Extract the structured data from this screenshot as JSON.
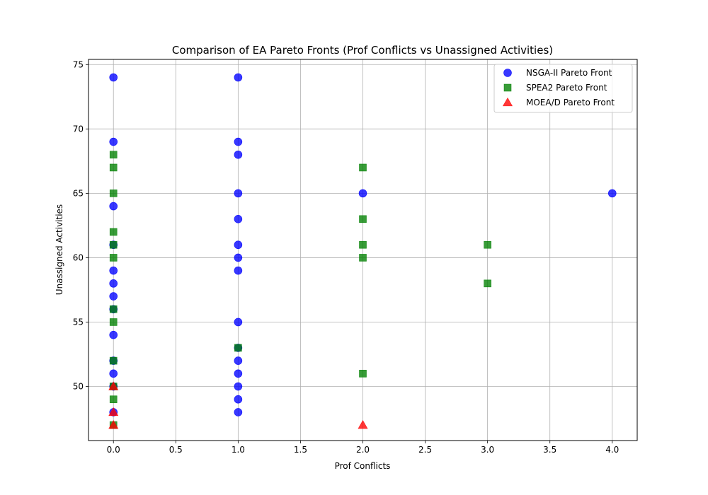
{
  "chart_data": {
    "type": "scatter",
    "title": "Comparison of EA Pareto Fronts (Prof Conflicts vs Unassigned Activities)",
    "xlabel": "Prof Conflicts",
    "ylabel": "Unassigned Activities",
    "xlim": [
      -0.2,
      4.2
    ],
    "ylim": [
      45.8,
      75.4
    ],
    "xticks": [
      0.0,
      0.5,
      1.0,
      1.5,
      2.0,
      2.5,
      3.0,
      3.5,
      4.0
    ],
    "xtick_labels": [
      "0.0",
      "0.5",
      "1.0",
      "1.5",
      "2.0",
      "2.5",
      "3.0",
      "3.5",
      "4.0"
    ],
    "yticks": [
      50,
      55,
      60,
      65,
      70,
      75
    ],
    "ytick_labels": [
      "50",
      "55",
      "60",
      "65",
      "70",
      "75"
    ],
    "grid": true,
    "legend_position": "top-right",
    "series": [
      {
        "name": "NSGA-II Pareto Front",
        "marker": "circle",
        "color": "#0000ff",
        "points": [
          [
            0,
            74
          ],
          [
            0,
            69
          ],
          [
            0,
            64
          ],
          [
            0,
            61
          ],
          [
            0,
            59
          ],
          [
            0,
            58
          ],
          [
            0,
            57
          ],
          [
            0,
            56
          ],
          [
            0,
            54
          ],
          [
            0,
            52
          ],
          [
            0,
            51
          ],
          [
            0,
            50
          ],
          [
            0,
            48
          ],
          [
            1,
            74
          ],
          [
            1,
            69
          ],
          [
            1,
            68
          ],
          [
            1,
            65
          ],
          [
            1,
            63
          ],
          [
            1,
            61
          ],
          [
            1,
            60
          ],
          [
            1,
            59
          ],
          [
            1,
            55
          ],
          [
            1,
            53
          ],
          [
            1,
            52
          ],
          [
            1,
            51
          ],
          [
            1,
            50
          ],
          [
            1,
            49
          ],
          [
            1,
            48
          ],
          [
            2,
            65
          ],
          [
            4,
            65
          ]
        ]
      },
      {
        "name": "SPEA2 Pareto Front",
        "marker": "square",
        "color": "#008000",
        "points": [
          [
            0,
            68
          ],
          [
            0,
            67
          ],
          [
            0,
            65
          ],
          [
            0,
            62
          ],
          [
            0,
            61
          ],
          [
            0,
            60
          ],
          [
            0,
            56
          ],
          [
            0,
            55
          ],
          [
            0,
            52
          ],
          [
            0,
            50
          ],
          [
            0,
            49
          ],
          [
            0,
            47
          ],
          [
            1,
            53
          ],
          [
            2,
            67
          ],
          [
            2,
            63
          ],
          [
            2,
            61
          ],
          [
            2,
            60
          ],
          [
            2,
            51
          ],
          [
            3,
            61
          ],
          [
            3,
            58
          ]
        ]
      },
      {
        "name": "MOEA/D Pareto Front",
        "marker": "triangle",
        "color": "#ff0000",
        "points": [
          [
            0,
            50
          ],
          [
            0,
            48
          ],
          [
            0,
            47
          ],
          [
            2,
            47
          ]
        ]
      }
    ]
  }
}
